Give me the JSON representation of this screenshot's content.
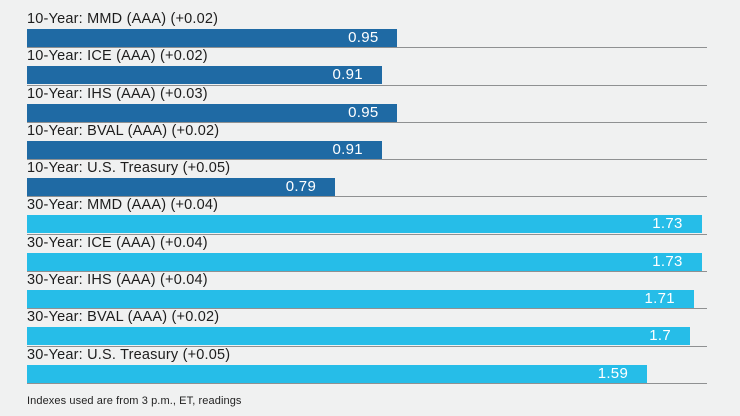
{
  "chart_data": {
    "type": "bar",
    "orientation": "horizontal",
    "title": "",
    "xlabel": "",
    "ylabel": "",
    "xlim": [
      0,
      1.7436
    ],
    "grid": "row-separator-lines",
    "legend": "none",
    "value_labels": "inside-bar-right",
    "colors": {
      "10-Year": "#1f6aa4",
      "30-Year": "#26bde8"
    },
    "rows": [
      {
        "label": "10-Year: MMD (AAA) (+0.02)",
        "value": 0.95,
        "value_label": "0.95",
        "group": "10-Year"
      },
      {
        "label": "10-Year: ICE (AAA) (+0.02)",
        "value": 0.91,
        "value_label": "0.91",
        "group": "10-Year"
      },
      {
        "label": "10-Year: IHS (AAA) (+0.03)",
        "value": 0.95,
        "value_label": "0.95",
        "group": "10-Year"
      },
      {
        "label": "10-Year: BVAL (AAA) (+0.02)",
        "value": 0.91,
        "value_label": "0.91",
        "group": "10-Year"
      },
      {
        "label": "10-Year: U.S. Treasury (+0.05)",
        "value": 0.79,
        "value_label": "0.79",
        "group": "10-Year"
      },
      {
        "label": "30-Year: MMD (AAA) (+0.04)",
        "value": 1.73,
        "value_label": "1.73",
        "group": "30-Year"
      },
      {
        "label": "30-Year: ICE (AAA) (+0.04)",
        "value": 1.73,
        "value_label": "1.73",
        "group": "30-Year"
      },
      {
        "label": "30-Year: IHS (AAA) (+0.04)",
        "value": 1.71,
        "value_label": "1.71",
        "group": "30-Year"
      },
      {
        "label": "30-Year: BVAL (AAA) (+0.02)",
        "value": 1.7,
        "value_label": "1.7",
        "group": "30-Year"
      },
      {
        "label": "30-Year: U.S. Treasury (+0.05)",
        "value": 1.59,
        "value_label": "1.59",
        "group": "30-Year"
      }
    ]
  },
  "footer": {
    "note": "Indexes used are from 3 p.m., ET, readings"
  }
}
